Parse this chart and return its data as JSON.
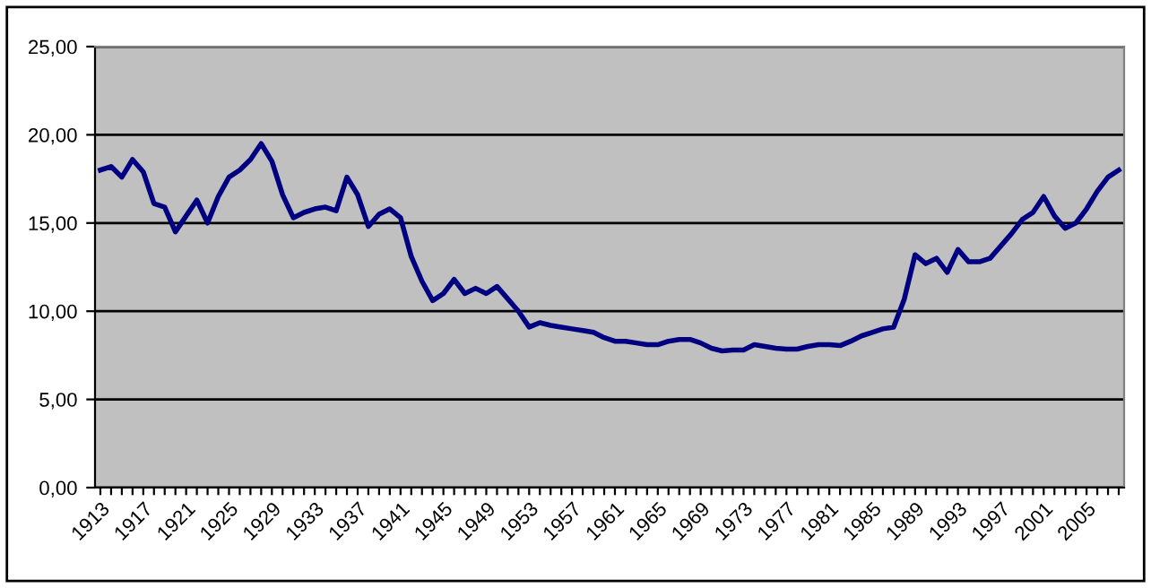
{
  "chart_data": {
    "type": "line",
    "categories": [
      "1913",
      null,
      null,
      null,
      "1917",
      null,
      null,
      null,
      "1921",
      null,
      null,
      null,
      "1925",
      null,
      null,
      null,
      "1929",
      null,
      null,
      null,
      "1933",
      null,
      null,
      null,
      "1937",
      null,
      null,
      null,
      "1941",
      null,
      null,
      null,
      "1945",
      null,
      null,
      null,
      "1949",
      null,
      null,
      null,
      "1953",
      null,
      null,
      null,
      "1957",
      null,
      null,
      null,
      "1961",
      null,
      null,
      null,
      "1965",
      null,
      null,
      null,
      "1969",
      null,
      null,
      null,
      "1973",
      null,
      null,
      null,
      "1977",
      null,
      null,
      null,
      "1981",
      null,
      null,
      null,
      "1985",
      null,
      null,
      null,
      "1989",
      null,
      null,
      null,
      "1993",
      null,
      null,
      null,
      "1997",
      null,
      null,
      null,
      "2001",
      null,
      null,
      null,
      "2005",
      null,
      null,
      null
    ],
    "series": [
      {
        "color": "#000080",
        "values": [
          18.0,
          18.2,
          17.6,
          18.6,
          17.9,
          16.1,
          15.9,
          14.5,
          15.4,
          16.3,
          15.0,
          16.5,
          17.6,
          18.0,
          18.6,
          19.5,
          18.5,
          16.6,
          15.3,
          15.6,
          15.8,
          15.9,
          15.7,
          17.6,
          16.6,
          14.8,
          15.5,
          15.8,
          15.3,
          13.1,
          11.7,
          10.6,
          11.0,
          11.8,
          11.0,
          11.3,
          11.0,
          11.4,
          10.7,
          10.0,
          9.1,
          9.35,
          9.2,
          9.1,
          9.0,
          8.9,
          8.8,
          8.5,
          8.3,
          8.3,
          8.2,
          8.1,
          8.1,
          8.3,
          8.4,
          8.4,
          8.2,
          7.9,
          7.75,
          7.8,
          7.8,
          8.1,
          8.0,
          7.9,
          7.85,
          7.85,
          8.0,
          8.1,
          8.1,
          8.05,
          8.3,
          8.6,
          8.8,
          9.0,
          9.1,
          10.7,
          13.2,
          12.7,
          13.0,
          12.2,
          13.5,
          12.8,
          12.8,
          13.0,
          13.7,
          14.4,
          15.2,
          15.6,
          16.5,
          15.4,
          14.7,
          15.0,
          15.8,
          16.8,
          17.6,
          18.0
        ]
      }
    ],
    "ylim": [
      0,
      25
    ],
    "yticks": [
      {
        "value": 0,
        "label": "0,00"
      },
      {
        "value": 5,
        "label": "5,00"
      },
      {
        "value": 10,
        "label": "10,00"
      },
      {
        "value": 15,
        "label": "15,00"
      },
      {
        "value": 20,
        "label": "20,00"
      },
      {
        "value": 25,
        "label": "25,00"
      }
    ],
    "grid": "y",
    "marker": "none",
    "line_style": "solid"
  }
}
